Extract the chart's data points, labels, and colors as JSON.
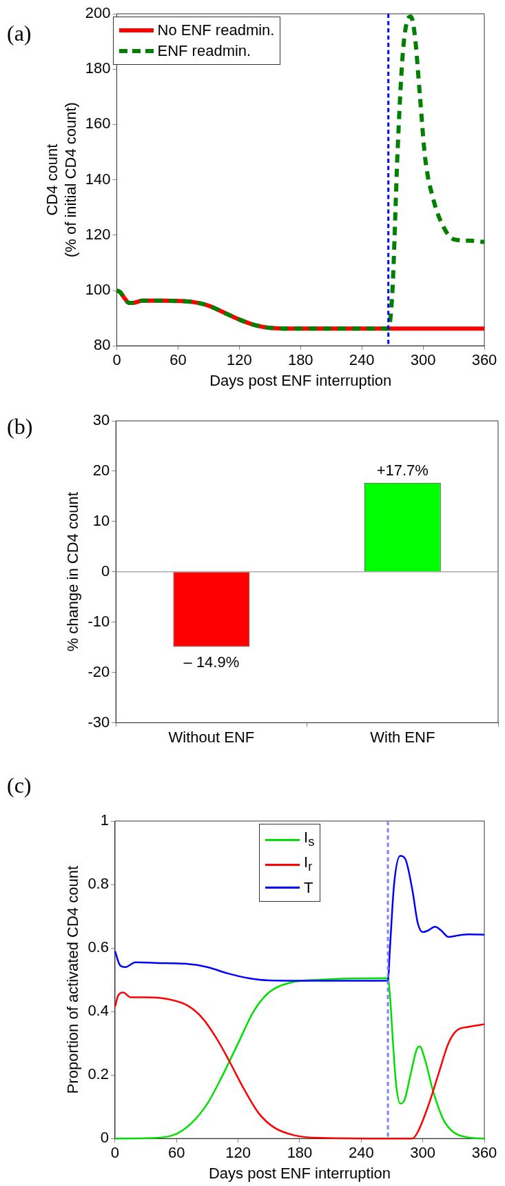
{
  "chart_data": [
    {
      "type": "line",
      "title": "(a)",
      "xlabel": "Days post ENF interruption",
      "ylabel": "CD4 count\n(% of initial CD4 count)",
      "xlim": [
        0,
        360
      ],
      "xticks": [
        0,
        60,
        120,
        180,
        240,
        300,
        360
      ],
      "ylim": [
        80,
        200
      ],
      "yticks": [
        80,
        100,
        120,
        140,
        160,
        180,
        200
      ],
      "legend": "top left",
      "grid": false,
      "series": [
        {
          "name": "No ENF readmin.",
          "color": "#ff0000",
          "line_style": "solid",
          "x": [
            0,
            3,
            8,
            12,
            16,
            25,
            40,
            60,
            75,
            90,
            105,
            120,
            135,
            150,
            180,
            266,
            360
          ],
          "values": [
            100,
            99.5,
            97,
            95.5,
            95.5,
            96.3,
            96.3,
            96.2,
            95.8,
            94.5,
            92,
            89.5,
            87.5,
            86.5,
            86.2,
            86.2,
            86.2
          ]
        },
        {
          "name": "ENF readmin.",
          "color": "#008000",
          "line_style": "dashed",
          "x": [
            0,
            3,
            8,
            12,
            16,
            25,
            40,
            60,
            75,
            90,
            105,
            120,
            135,
            150,
            180,
            266,
            270,
            275,
            280,
            285,
            288,
            292,
            297,
            302,
            310,
            320,
            330,
            345,
            360
          ],
          "values": [
            100,
            99.5,
            97,
            95.5,
            95.5,
            96.3,
            96.3,
            96.2,
            95.8,
            94.5,
            92,
            89.5,
            87.5,
            86.5,
            86.2,
            86.2,
            100,
            150,
            185,
            198,
            199,
            192,
            170,
            148,
            133,
            123,
            118.5,
            118,
            117.5
          ]
        }
      ],
      "ref_lines": [
        {
          "axis": "x",
          "value": 266,
          "color": "#0000ff",
          "line_style": "dashed"
        }
      ]
    },
    {
      "type": "bar",
      "title": "(b)",
      "ylabel": "% change in CD4 count",
      "categories": [
        "Without ENF",
        "With ENF"
      ],
      "values": [
        -14.9,
        17.7
      ],
      "colors": [
        "#ff0000",
        "#00ff00"
      ],
      "value_labels": [
        "– 14.9%",
        "+17.7%"
      ],
      "ylim": [
        -30,
        30
      ],
      "yticks": [
        -30,
        -20,
        -10,
        0,
        10,
        20,
        30
      ],
      "grid": false,
      "ref_lines": [
        {
          "axis": "y",
          "value": 0,
          "color": "#808080",
          "line_style": "solid"
        }
      ]
    },
    {
      "type": "line",
      "title": "(c)",
      "xlabel": "Days post ENF interruption",
      "ylabel": "Proportion of activated CD4 count",
      "xlim": [
        0,
        360
      ],
      "xticks": [
        0,
        60,
        120,
        180,
        240,
        300,
        360
      ],
      "ylim": [
        0,
        1
      ],
      "yticks": [
        0,
        0.2,
        0.4,
        0.6,
        0.8,
        1
      ],
      "legend": "top",
      "grid": false,
      "series": [
        {
          "name": "I$_{s}$",
          "color": "#00e000",
          "x": [
            0,
            40,
            60,
            75,
            90,
            105,
            120,
            135,
            150,
            170,
            200,
            266,
            268,
            271,
            274,
            278,
            282,
            288,
            294,
            297,
            302,
            310,
            320,
            330,
            345,
            360
          ],
          "values": [
            0,
            0.002,
            0.015,
            0.05,
            0.11,
            0.2,
            0.3,
            0.4,
            0.46,
            0.49,
            0.5,
            0.505,
            0.45,
            0.3,
            0.17,
            0.11,
            0.12,
            0.2,
            0.28,
            0.29,
            0.25,
            0.15,
            0.06,
            0.02,
            0.003,
            0
          ]
        },
        {
          "name": "I$_{r}$",
          "color": "#ff0000",
          "x": [
            0,
            3,
            8,
            15,
            30,
            50,
            70,
            85,
            100,
            112,
            125,
            140,
            155,
            175,
            200,
            266,
            290,
            295,
            305,
            315,
            325,
            333,
            345,
            360
          ],
          "values": [
            0.415,
            0.45,
            0.46,
            0.445,
            0.445,
            0.44,
            0.42,
            0.38,
            0.31,
            0.24,
            0.16,
            0.08,
            0.035,
            0.01,
            0.002,
            0,
            0,
            0.02,
            0.1,
            0.2,
            0.3,
            0.34,
            0.352,
            0.36
          ]
        },
        {
          "name": "T",
          "color": "#0000ff",
          "x": [
            0,
            5,
            10,
            20,
            40,
            70,
            90,
            110,
            130,
            150,
            180,
            266,
            268,
            272,
            278,
            283,
            290,
            295,
            300,
            305,
            312,
            318,
            325,
            335,
            345,
            360
          ],
          "values": [
            0.59,
            0.545,
            0.54,
            0.555,
            0.553,
            0.55,
            0.54,
            0.52,
            0.505,
            0.498,
            0.497,
            0.497,
            0.6,
            0.8,
            0.89,
            0.88,
            0.78,
            0.68,
            0.65,
            0.655,
            0.667,
            0.655,
            0.635,
            0.64,
            0.643,
            0.642
          ]
        }
      ],
      "ref_lines": [
        {
          "axis": "x",
          "value": 266,
          "color": "#8080ff",
          "line_style": "dashed"
        }
      ]
    }
  ]
}
